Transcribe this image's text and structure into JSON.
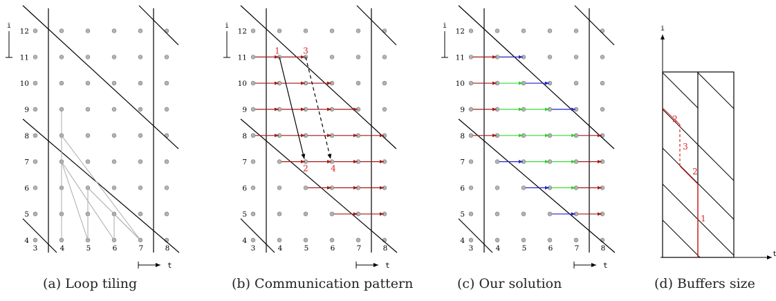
{
  "panels": [
    {
      "caption": "(a) Loop tiling",
      "axis_i": "i",
      "axis_t": "t",
      "i_ticks": [
        "4",
        "5",
        "6",
        "7",
        "8",
        "9",
        "10",
        "11",
        "12"
      ],
      "t_ticks": [
        "3",
        "4",
        "5",
        "6",
        "7",
        "8"
      ]
    },
    {
      "caption": "(b) Communication pattern",
      "axis_i": "i",
      "axis_t": "t",
      "i_ticks": [
        "4",
        "5",
        "6",
        "7",
        "8",
        "9",
        "10",
        "11",
        "12"
      ],
      "t_ticks": [
        "3",
        "4",
        "5",
        "6",
        "7",
        "8"
      ],
      "annotations": [
        "1",
        "3",
        "2",
        "4"
      ]
    },
    {
      "caption": "(c) Our solution",
      "axis_i": "i",
      "axis_t": "t",
      "i_ticks": [
        "4",
        "5",
        "6",
        "7",
        "8",
        "9",
        "10",
        "11",
        "12"
      ],
      "t_ticks": [
        "3",
        "4",
        "5",
        "6",
        "7",
        "8"
      ]
    },
    {
      "caption": "(d) Buffers size",
      "axis_i": "i",
      "axis_t": "t",
      "annotations": [
        "2",
        "3",
        "2",
        "1"
      ]
    }
  ],
  "colors": {
    "grid_point": "#b3b3b3",
    "dependency": "#aaaaaa",
    "comm": "#a31818",
    "green": "#33dd33",
    "blue": "#2222cc",
    "label": "#dd2222"
  }
}
